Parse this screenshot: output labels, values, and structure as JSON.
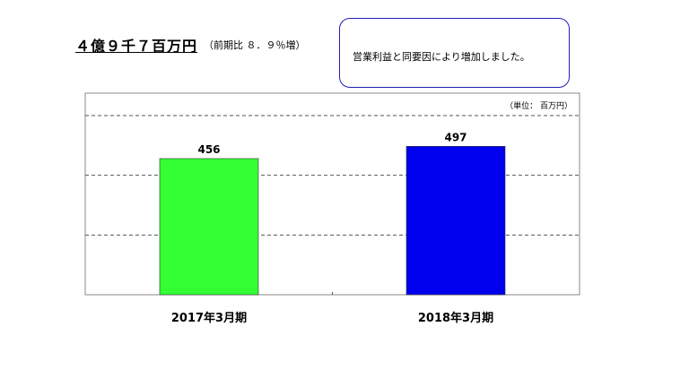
{
  "headline": "４億９千７百万円",
  "comparison": "（前期比 ８．９％増）",
  "note": "営業利益と同要因により増加しました。",
  "chart_data": {
    "type": "bar",
    "unit_label": "（単位： 百万円）",
    "categories": [
      "2017年3月期",
      "2018年3月期"
    ],
    "values": [
      456,
      497
    ],
    "colors": [
      "#33ff33",
      "#0000ee"
    ],
    "ylim": [
      0,
      600
    ],
    "gridlines": [
      200,
      400,
      600
    ],
    "grid": true,
    "legend": "none"
  }
}
